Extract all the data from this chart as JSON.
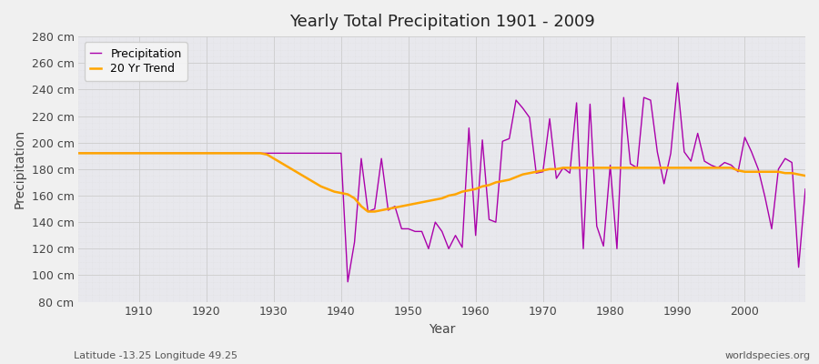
{
  "title": "Yearly Total Precipitation 1901 - 2009",
  "xlabel": "Year",
  "ylabel": "Precipitation",
  "background_color": "#f0f0f0",
  "plot_bg_color": "#e8e8ed",
  "precipitation_color": "#aa00aa",
  "trend_color": "#FFA500",
  "ylim": [
    80,
    280
  ],
  "ytick_step": 20,
  "footer_left": "Latitude -13.25 Longitude 49.25",
  "footer_right": "worldspecies.org",
  "legend_labels": [
    "Precipitation",
    "20 Yr Trend"
  ],
  "years": [
    1901,
    1902,
    1903,
    1904,
    1905,
    1906,
    1907,
    1908,
    1909,
    1910,
    1911,
    1912,
    1913,
    1914,
    1915,
    1916,
    1917,
    1918,
    1919,
    1920,
    1921,
    1922,
    1923,
    1924,
    1925,
    1926,
    1927,
    1928,
    1929,
    1930,
    1931,
    1932,
    1933,
    1934,
    1935,
    1936,
    1937,
    1938,
    1939,
    1940,
    1941,
    1942,
    1943,
    1944,
    1945,
    1946,
    1947,
    1948,
    1949,
    1950,
    1951,
    1952,
    1953,
    1954,
    1955,
    1956,
    1957,
    1958,
    1959,
    1960,
    1961,
    1962,
    1963,
    1964,
    1965,
    1966,
    1967,
    1968,
    1969,
    1970,
    1971,
    1972,
    1973,
    1974,
    1975,
    1976,
    1977,
    1978,
    1979,
    1980,
    1981,
    1982,
    1983,
    1984,
    1985,
    1986,
    1987,
    1988,
    1989,
    1990,
    1991,
    1992,
    1993,
    1994,
    1995,
    1996,
    1997,
    1998,
    1999,
    2000,
    2001,
    2002,
    2003,
    2004,
    2005,
    2006,
    2007,
    2008,
    2009
  ],
  "precipitation": [
    192,
    192,
    192,
    192,
    192,
    192,
    192,
    192,
    192,
    192,
    192,
    192,
    192,
    192,
    192,
    192,
    192,
    192,
    192,
    192,
    192,
    192,
    192,
    192,
    192,
    192,
    192,
    192,
    192,
    192,
    192,
    192,
    192,
    192,
    192,
    192,
    192,
    192,
    192,
    192,
    95,
    125,
    188,
    148,
    150,
    188,
    149,
    152,
    135,
    135,
    133,
    133,
    120,
    140,
    133,
    120,
    130,
    121,
    211,
    130,
    202,
    142,
    140,
    201,
    203,
    232,
    226,
    219,
    177,
    178,
    218,
    173,
    181,
    177,
    230,
    120,
    229,
    137,
    122,
    183,
    120,
    234,
    184,
    181,
    234,
    232,
    193,
    169,
    192,
    245,
    193,
    186,
    207,
    186,
    183,
    181,
    185,
    183,
    178,
    204,
    193,
    180,
    159,
    135,
    180,
    188,
    185,
    106,
    165
  ],
  "trend": [
    192,
    192,
    192,
    192,
    192,
    192,
    192,
    192,
    192,
    192,
    192,
    192,
    192,
    192,
    192,
    192,
    192,
    192,
    192,
    192,
    192,
    192,
    192,
    192,
    192,
    192,
    192,
    192,
    191,
    188,
    185,
    182,
    179,
    176,
    173,
    170,
    167,
    165,
    163,
    162,
    161,
    158,
    152,
    148,
    148,
    149,
    150,
    151,
    152,
    153,
    154,
    155,
    156,
    157,
    158,
    160,
    161,
    163,
    164,
    165,
    167,
    168,
    170,
    171,
    172,
    174,
    176,
    177,
    178,
    179,
    180,
    180,
    181,
    181,
    181,
    181,
    181,
    181,
    181,
    181,
    181,
    181,
    181,
    181,
    181,
    181,
    181,
    181,
    181,
    181,
    181,
    181,
    181,
    181,
    181,
    181,
    181,
    181,
    179,
    178,
    178,
    178,
    178,
    178,
    178,
    177,
    177,
    176,
    175
  ]
}
